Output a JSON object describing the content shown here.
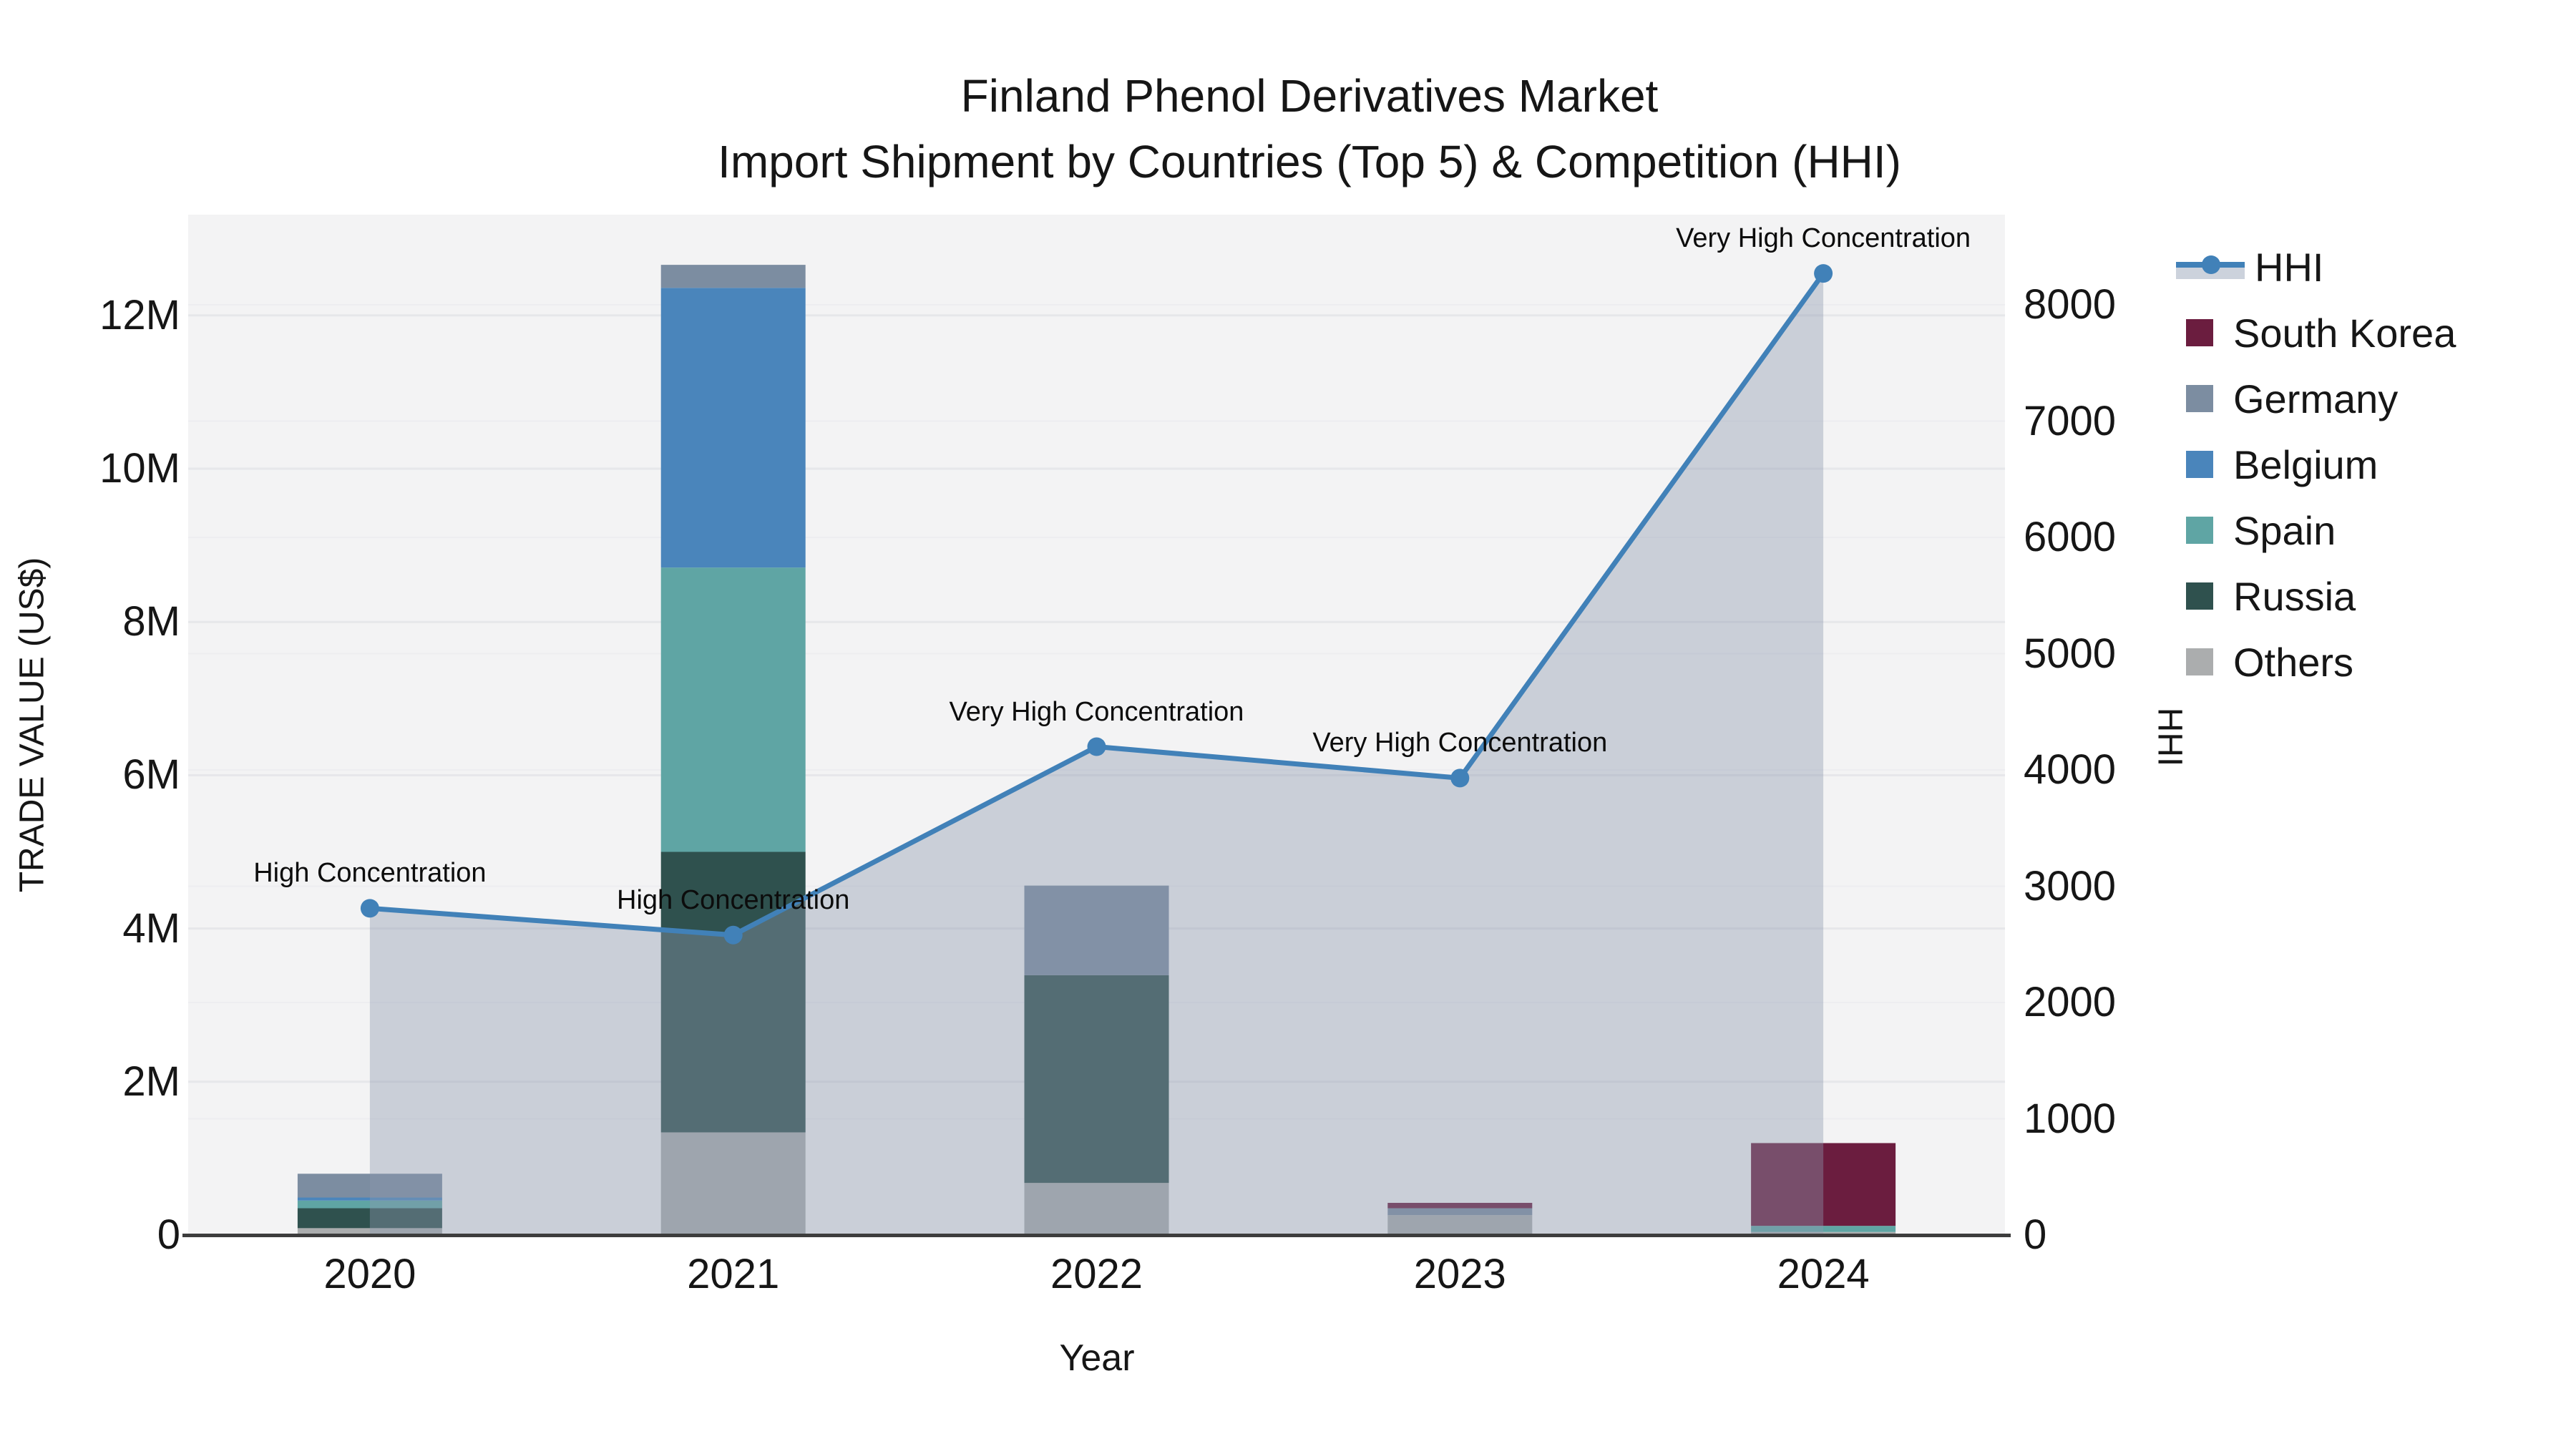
{
  "title": {
    "line1": "Finland Phenol Derivatives Market",
    "line2": "Import Shipment by Countries (Top 5) & Competition (HHI)"
  },
  "axes": {
    "y_left": {
      "label": "TRADE VALUE (US$)",
      "ticks": [
        "0",
        "2M",
        "4M",
        "6M",
        "8M",
        "10M",
        "12M"
      ],
      "tick_values_musd": [
        0,
        2,
        4,
        6,
        8,
        10,
        12
      ]
    },
    "y_right": {
      "label": "HHI",
      "ticks": [
        "0",
        "1000",
        "2000",
        "3000",
        "4000",
        "5000",
        "6000",
        "7000",
        "8000"
      ],
      "tick_values": [
        0,
        1000,
        2000,
        3000,
        4000,
        5000,
        6000,
        7000,
        8000
      ]
    },
    "x": {
      "label": "Year",
      "ticks": [
        "2020",
        "2021",
        "2022",
        "2023",
        "2024"
      ]
    }
  },
  "legend": [
    {
      "label": "HHI",
      "type": "line",
      "color": "#4181b8"
    },
    {
      "label": "South Korea",
      "type": "swatch",
      "color": "#6b1d3f"
    },
    {
      "label": "Germany",
      "type": "swatch",
      "color": "#7c8da1"
    },
    {
      "label": "Belgium",
      "type": "swatch",
      "color": "#4a85bb"
    },
    {
      "label": "Spain",
      "type": "swatch",
      "color": "#5fa5a4"
    },
    {
      "label": "Russia",
      "type": "swatch",
      "color": "#2f514e"
    },
    {
      "label": "Others",
      "type": "swatch",
      "color": "#abadae"
    }
  ],
  "colors": {
    "plot_background": "#f3f3f4",
    "grid_left": "#e6e7ea",
    "grid_right": "#ededf0",
    "axis_line": "#3d3d3d",
    "hhi_line": "#4181b8",
    "hhi_area_fill": "rgba(140,153,175,0.40)"
  },
  "chart_data": {
    "type": "combo: stacked bars (trade value, left axis) + line with area fill (HHI, right axis)",
    "x": [
      "2020",
      "2021",
      "2022",
      "2023",
      "2024"
    ],
    "bar_unit": "million US$",
    "series": [
      {
        "name": "Others",
        "color": "#abadae",
        "values": [
          0.09,
          1.34,
          0.68,
          0.26,
          0.04
        ]
      },
      {
        "name": "Russia",
        "color": "#2f514e",
        "values": [
          0.26,
          3.66,
          2.71,
          0.0,
          0.0
        ]
      },
      {
        "name": "Spain",
        "color": "#5fa5a4",
        "values": [
          0.1,
          3.71,
          0.0,
          0.0,
          0.08
        ]
      },
      {
        "name": "Belgium",
        "color": "#4a85bb",
        "values": [
          0.04,
          3.65,
          0.0,
          0.0,
          0.0
        ]
      },
      {
        "name": "Germany",
        "color": "#7c8da1",
        "values": [
          0.31,
          0.3,
          1.17,
          0.09,
          0.0
        ]
      },
      {
        "name": "South Korea",
        "color": "#6b1d3f",
        "values": [
          0.0,
          0.0,
          0.0,
          0.07,
          1.08
        ]
      }
    ],
    "bar_totals_musd": [
      0.8,
      12.66,
      4.56,
      0.42,
      1.2
    ],
    "hhi": {
      "name": "HHI",
      "values": [
        2810,
        2580,
        4200,
        3930,
        8270
      ],
      "annotations": [
        "High Concentration",
        "High Concentration",
        "Very High Concentration",
        "Very High Concentration",
        "Very High Concentration"
      ]
    },
    "ylim_left_musd": [
      0,
      13.3
    ],
    "ylim_right": [
      0,
      8780
    ],
    "grid": "horizontal gridlines for both axes",
    "legend_position": "right"
  }
}
